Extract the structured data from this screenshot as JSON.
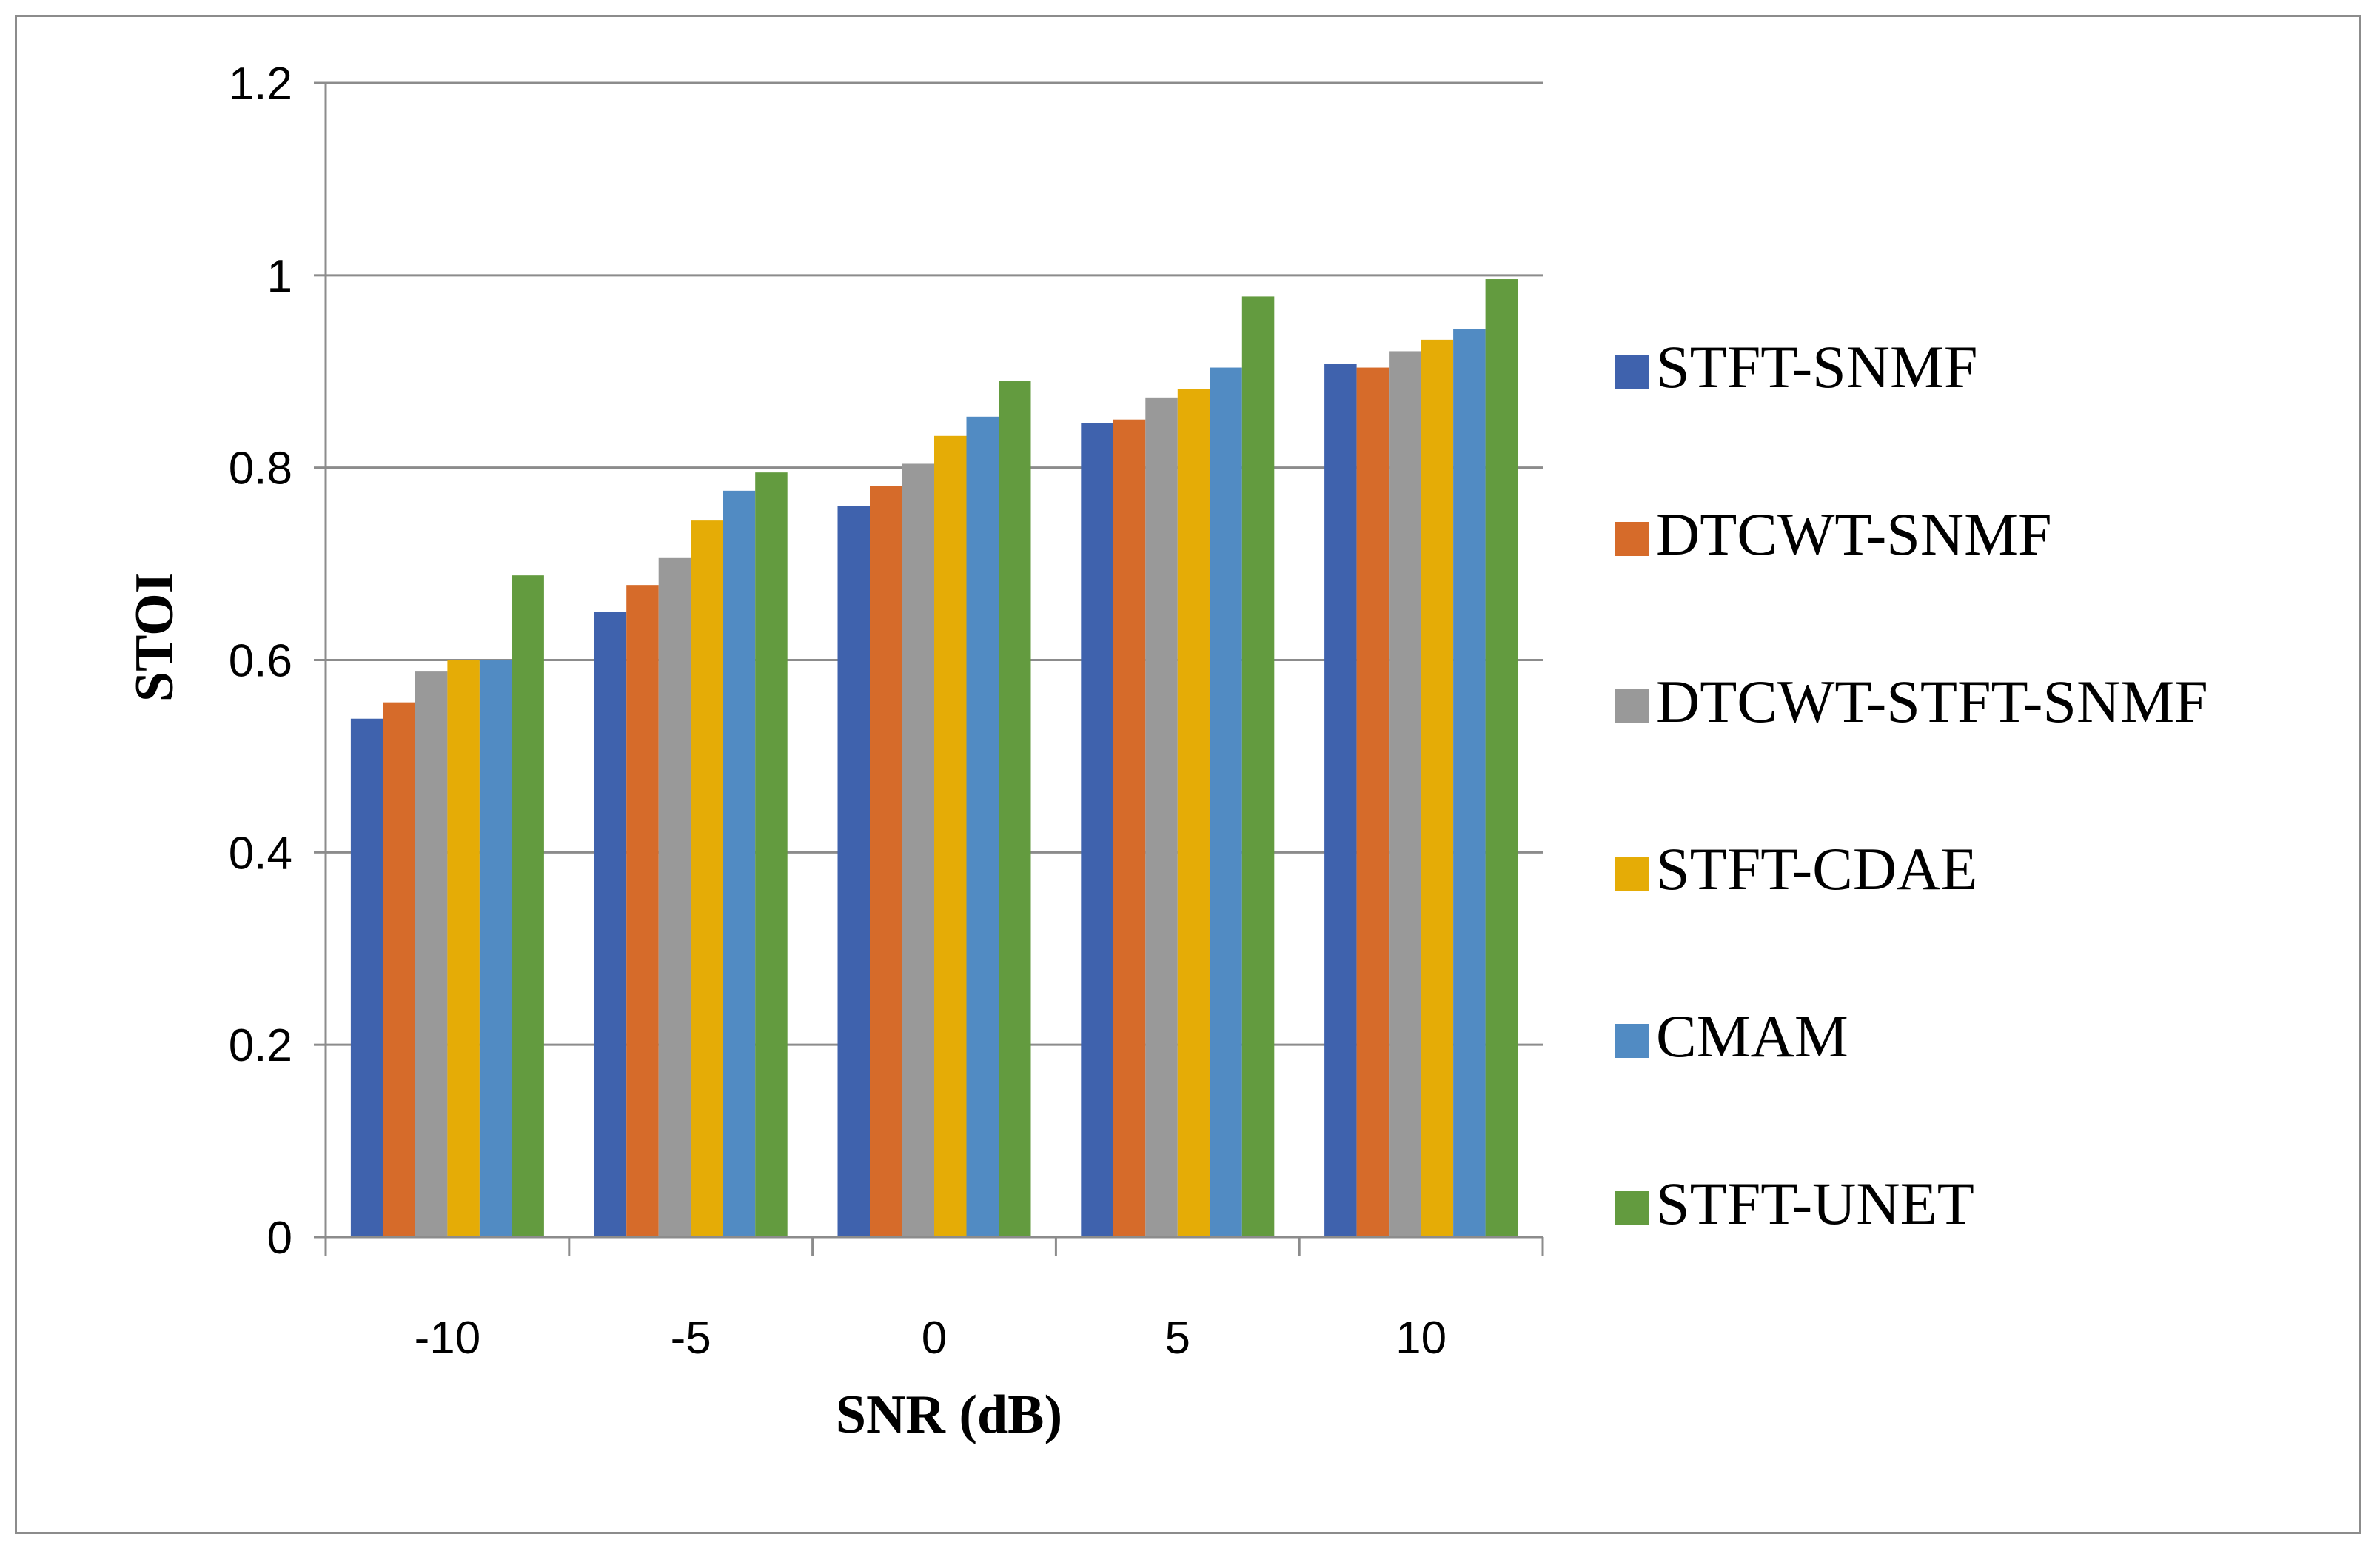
{
  "chart_data": {
    "type": "bar",
    "title": "",
    "xlabel": "SNR (dB)",
    "ylabel": "STOI",
    "categories": [
      "-10",
      "-5",
      "0",
      "5",
      "10"
    ],
    "ylim": [
      0,
      1.2
    ],
    "yticks": [
      "0",
      "0.2",
      "0.4",
      "0.6",
      "0.8",
      "1",
      "1.2"
    ],
    "ytick_values": [
      0,
      0.2,
      0.4,
      0.6,
      0.8,
      1.0,
      1.2
    ],
    "grid": true,
    "legend_position": "right",
    "series": [
      {
        "name": "STFT-SNMF",
        "color": "#3f62ad",
        "values": [
          0.539,
          0.65,
          0.76,
          0.846,
          0.908
        ]
      },
      {
        "name": "DTCWT-SNMF",
        "color": "#d66b2a",
        "values": [
          0.556,
          0.678,
          0.781,
          0.85,
          0.904
        ]
      },
      {
        "name": "DTCWT-STFT-SNMF",
        "color": "#999999",
        "values": [
          0.588,
          0.706,
          0.804,
          0.873,
          0.921
        ]
      },
      {
        "name": "STFT-CDAE",
        "color": "#e5ac06",
        "values": [
          0.6,
          0.745,
          0.833,
          0.882,
          0.933
        ]
      },
      {
        "name": "CMAM",
        "color": "#518bc3",
        "values": [
          0.6,
          0.776,
          0.853,
          0.904,
          0.944
        ]
      },
      {
        "name": "STFT-UNET",
        "color": "#639b3f",
        "values": [
          0.688,
          0.795,
          0.89,
          0.978,
          0.996
        ]
      }
    ]
  }
}
